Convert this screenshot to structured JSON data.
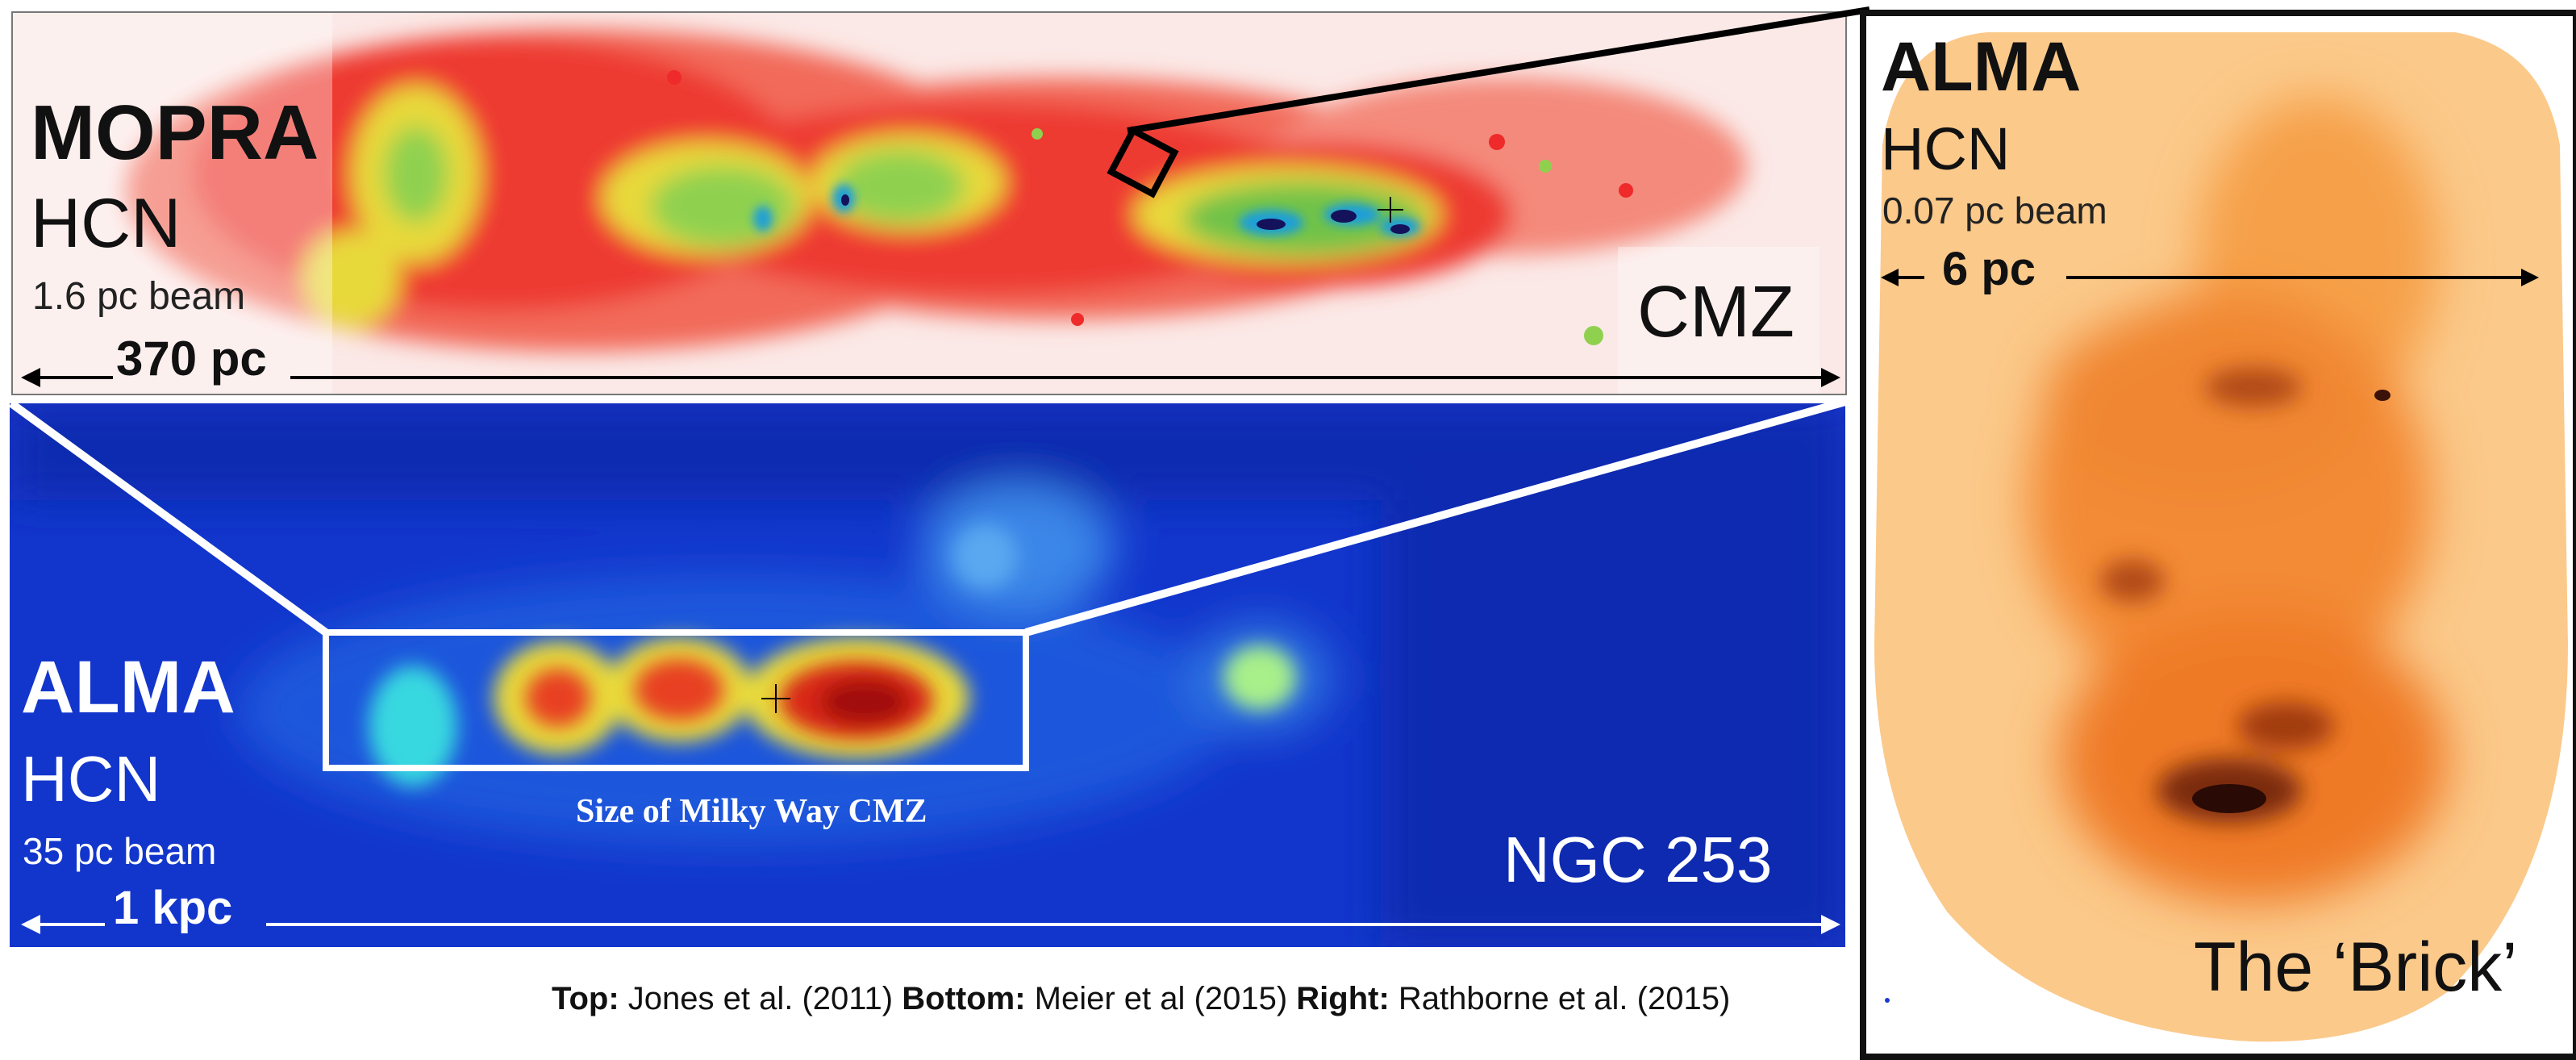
{
  "top_panel": {
    "telescope": "MOPRA",
    "molecule": "HCN",
    "beam": "1.6 pc beam",
    "scale": "370 pc",
    "region": "CMZ",
    "colors": {
      "background": "#fbe6e4",
      "emission": "#ee2a2a",
      "mid": "#8fd14f",
      "peak": "#14125a"
    }
  },
  "bottom_panel": {
    "telescope": "ALMA",
    "molecule": "HCN",
    "beam": "35 pc beam",
    "scale": "1 kpc",
    "galaxy": "NGC 253",
    "box_label": "Size of Milky Way CMZ",
    "colors": {
      "background": "#1236cc",
      "peak": "#b01010"
    }
  },
  "right_panel": {
    "telescope": "ALMA",
    "molecule": "HCN",
    "beam": "0.07 pc beam",
    "scale": "6 pc",
    "cloud": "The ‘Brick’",
    "colors": {
      "body": "#f7b060",
      "dark": "#3a1208"
    }
  },
  "credits": {
    "top_label": "Top:",
    "top_ref": "Jones et al. (2011)",
    "bottom_label": "Bottom:",
    "bottom_ref": "Meier et al (2015)",
    "right_label": "Right:",
    "right_ref": "Rathborne et al. (2015)"
  }
}
